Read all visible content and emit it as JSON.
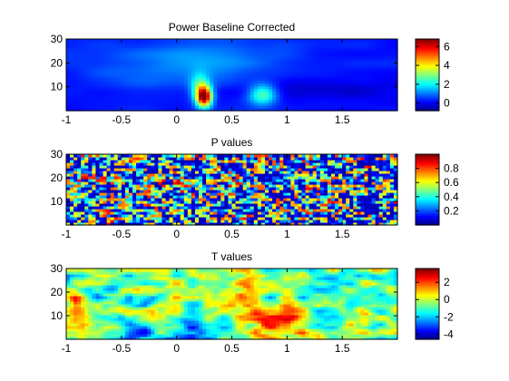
{
  "chart_data": [
    {
      "type": "heatmap",
      "title": "Power Baseline Corrected",
      "xlim": [
        -1,
        2
      ],
      "ylim": [
        0,
        30
      ],
      "x_ticks": [
        -1,
        -0.5,
        0,
        0.5,
        1,
        1.5
      ],
      "x_tick_labels": [
        "-1",
        "-0.5",
        "0",
        "0.5",
        "1",
        "1.5"
      ],
      "y_ticks": [
        10,
        20,
        30
      ],
      "y_tick_labels": [
        "10",
        "20",
        "30"
      ],
      "colorbar": {
        "clim": [
          -0.8,
          6.8
        ],
        "ticks": [
          0,
          2,
          4,
          6
        ],
        "tick_labels": [
          "0",
          "2",
          "4",
          "6"
        ]
      },
      "background_value": 0.3,
      "features": [
        {
          "x": 0.25,
          "y": 6,
          "peak": 6.4,
          "sx": 0.05,
          "sy": 3
        },
        {
          "x": 0.21,
          "y": 10,
          "peak": 2.0,
          "sx": 0.06,
          "sy": 4
        },
        {
          "x": 0.78,
          "y": 7,
          "peak": 2.6,
          "sx": 0.09,
          "sy": 3
        },
        {
          "x": 0.35,
          "y": 22,
          "peak": 0.9,
          "sx": 0.4,
          "sy": 7
        },
        {
          "x": -0.3,
          "y": 18,
          "peak": 0.5,
          "sx": 0.4,
          "sy": 7
        },
        {
          "x": 1.35,
          "y": 9,
          "peak": -0.6,
          "sx": 0.5,
          "sy": 3
        }
      ]
    },
    {
      "type": "heatmap",
      "title": "P values",
      "xlim": [
        -1,
        2
      ],
      "ylim": [
        0,
        30
      ],
      "x_ticks": [
        -1,
        -0.5,
        0,
        0.5,
        1,
        1.5
      ],
      "x_tick_labels": [
        "-1",
        "-0.5",
        "0",
        "0.5",
        "1",
        "1.5"
      ],
      "y_ticks": [
        10,
        20,
        30
      ],
      "y_tick_labels": [
        "10",
        "20",
        "30"
      ],
      "colorbar": {
        "clim": [
          0,
          1
        ],
        "ticks": [
          0.2,
          0.4,
          0.6,
          0.8
        ],
        "tick_labels": [
          "0.2",
          "0.4",
          "0.6",
          "0.8"
        ]
      }
    },
    {
      "type": "heatmap",
      "title": "T values",
      "xlim": [
        -1,
        2
      ],
      "ylim": [
        0,
        30
      ],
      "x_ticks": [
        -1,
        -0.5,
        0,
        0.5,
        1,
        1.5
      ],
      "x_tick_labels": [
        "-1",
        "-0.5",
        "0",
        "0.5",
        "1",
        "1.5"
      ],
      "y_ticks": [
        10,
        20,
        30
      ],
      "y_tick_labels": [
        "10",
        "20",
        "30"
      ],
      "colorbar": {
        "clim": [
          -4.6,
          3.6
        ],
        "ticks": [
          -4,
          -2,
          0,
          2
        ],
        "tick_labels": [
          "-4",
          "-2",
          "0",
          "2"
        ]
      },
      "features": [
        {
          "x": 0.85,
          "y": 7,
          "peak": 2.8,
          "sx": 0.12,
          "sy": 5
        },
        {
          "x": 1.1,
          "y": 8,
          "peak": 2.2,
          "sx": 0.1,
          "sy": 4
        },
        {
          "x": 0.62,
          "y": 20,
          "peak": 2.3,
          "sx": 0.08,
          "sy": 5
        },
        {
          "x": -0.9,
          "y": 17,
          "peak": 2.5,
          "sx": 0.05,
          "sy": 3
        },
        {
          "x": 1.7,
          "y": 10,
          "peak": 2.8,
          "sx": 0.05,
          "sy": 4
        },
        {
          "x": 0.1,
          "y": 4,
          "peak": -2.6,
          "sx": 0.15,
          "sy": 3
        },
        {
          "x": -0.3,
          "y": 4,
          "peak": -2.2,
          "sx": 0.12,
          "sy": 3
        }
      ]
    }
  ]
}
